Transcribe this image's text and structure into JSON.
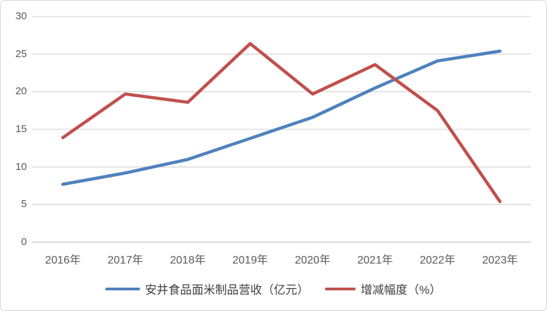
{
  "chart_data": {
    "type": "line",
    "title": "",
    "xlabel": "",
    "ylabel": "",
    "categories": [
      "2016年",
      "2017年",
      "2018年",
      "2019年",
      "2020年",
      "2021年",
      "2022年",
      "2023年"
    ],
    "series": [
      {
        "name": "安井食品面米制品营收（亿元）",
        "values": [
          7.7,
          9.2,
          11.0,
          13.8,
          16.6,
          20.5,
          24.1,
          25.4
        ],
        "color": "#4f81bd"
      },
      {
        "name": "增减幅度（%）",
        "values": [
          13.9,
          19.7,
          18.6,
          26.4,
          19.7,
          23.6,
          17.5,
          5.4
        ],
        "color": "#c0504d"
      }
    ],
    "ylim": [
      0,
      30
    ],
    "yticks": [
      0,
      5,
      10,
      15,
      20,
      25,
      30
    ],
    "grid": true,
    "legend_position": "bottom",
    "colors": {
      "gridline": "#d9d9d9",
      "baseline": "#c9c9c9",
      "axis_text": "#595959",
      "legend_text": "#3f3f3f",
      "background": "#ffffff"
    }
  }
}
